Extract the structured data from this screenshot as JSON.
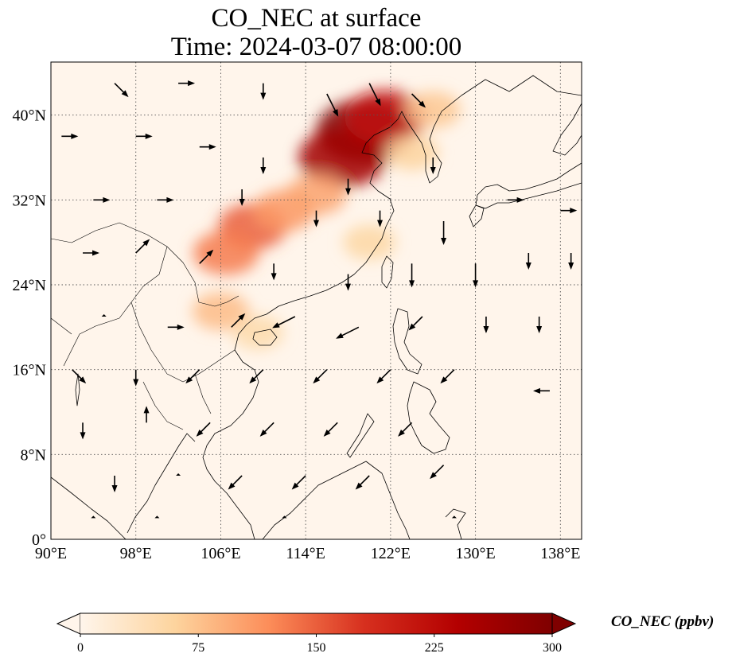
{
  "title": {
    "line1": "CO_NEC at surface",
    "line2": "Time: 2024-03-07 08:00:00"
  },
  "map": {
    "lon_range": [
      90,
      140
    ],
    "lat_range": [
      0,
      45
    ],
    "lon_ticks": [
      {
        "value": 90,
        "label": "90°E"
      },
      {
        "value": 98,
        "label": "98°E"
      },
      {
        "value": 106,
        "label": "106°E"
      },
      {
        "value": 114,
        "label": "114°E"
      },
      {
        "value": 122,
        "label": "122°E"
      },
      {
        "value": 130,
        "label": "130°E"
      },
      {
        "value": 138,
        "label": "138°E"
      }
    ],
    "lat_ticks": [
      {
        "value": 0,
        "label": "0°"
      },
      {
        "value": 8,
        "label": "8°N"
      },
      {
        "value": 16,
        "label": "16°N"
      },
      {
        "value": 24,
        "label": "24°N"
      },
      {
        "value": 32,
        "label": "32°N"
      },
      {
        "value": 40,
        "label": "40°N"
      }
    ],
    "gridlines": "dotted",
    "background_color": "#fff5eb"
  },
  "colorbar": {
    "label": "CO_NEC (ppbv)",
    "colormap": "OrRd",
    "min": 0,
    "max": 300,
    "ticks": [
      {
        "value": 0,
        "label": "0"
      },
      {
        "value": 75,
        "label": "75"
      },
      {
        "value": 150,
        "label": "150"
      },
      {
        "value": 225,
        "label": "225"
      },
      {
        "value": 300,
        "label": "300"
      }
    ],
    "extend": "both",
    "colors": [
      "#fff5eb",
      "#fdd49e",
      "#fc8d59",
      "#d7301f",
      "#b30000",
      "#7f0000"
    ]
  },
  "concentration_plumes": [
    {
      "lon": 119.5,
      "lat": 38.5,
      "value": 300
    },
    {
      "lon": 117.5,
      "lat": 36.0,
      "value": 260
    },
    {
      "lon": 121.5,
      "lat": 39.8,
      "value": 220
    },
    {
      "lon": 109.0,
      "lat": 29.5,
      "value": 150
    },
    {
      "lon": 106.5,
      "lat": 27.0,
      "value": 130
    },
    {
      "lon": 112.0,
      "lat": 31.0,
      "value": 110
    },
    {
      "lon": 115.0,
      "lat": 32.5,
      "value": 100
    },
    {
      "lon": 106.0,
      "lat": 21.5,
      "value": 80
    },
    {
      "lon": 109.5,
      "lat": 19.5,
      "value": 50
    },
    {
      "lon": 124.0,
      "lat": 36.5,
      "value": 60
    },
    {
      "lon": 120.0,
      "lat": 28.0,
      "value": 55
    },
    {
      "lon": 126.0,
      "lat": 40.5,
      "value": 70
    }
  ],
  "wind_vectors": [
    {
      "lon": 96,
      "lat": 43,
      "u": 1,
      "v": -1
    },
    {
      "lon": 102,
      "lat": 43,
      "u": 1,
      "v": 0
    },
    {
      "lon": 110,
      "lat": 43,
      "u": 0,
      "v": -1
    },
    {
      "lon": 116,
      "lat": 42,
      "u": 1,
      "v": -2
    },
    {
      "lon": 120,
      "lat": 43,
      "u": 1,
      "v": -2
    },
    {
      "lon": 124,
      "lat": 42,
      "u": 1,
      "v": -1
    },
    {
      "lon": 91,
      "lat": 38,
      "u": 1,
      "v": 0
    },
    {
      "lon": 98,
      "lat": 38,
      "u": 1,
      "v": 0
    },
    {
      "lon": 104,
      "lat": 37,
      "u": 1,
      "v": 0
    },
    {
      "lon": 110,
      "lat": 36,
      "u": 0,
      "v": -1
    },
    {
      "lon": 118,
      "lat": 34,
      "u": 0,
      "v": -1
    },
    {
      "lon": 126,
      "lat": 36,
      "u": 0,
      "v": -1
    },
    {
      "lon": 94,
      "lat": 32,
      "u": 1,
      "v": 0
    },
    {
      "lon": 100,
      "lat": 32,
      "u": 1,
      "v": 0
    },
    {
      "lon": 108,
      "lat": 33,
      "u": 0,
      "v": -1
    },
    {
      "lon": 115,
      "lat": 31,
      "u": 0,
      "v": -1
    },
    {
      "lon": 121,
      "lat": 31,
      "u": 0,
      "v": -1
    },
    {
      "lon": 127,
      "lat": 30,
      "u": 0,
      "v": -2
    },
    {
      "lon": 133,
      "lat": 32,
      "u": 1,
      "v": 0
    },
    {
      "lon": 138,
      "lat": 31,
      "u": 1,
      "v": 0
    },
    {
      "lon": 93,
      "lat": 27,
      "u": 1,
      "v": 0
    },
    {
      "lon": 98,
      "lat": 27,
      "u": 1,
      "v": 1
    },
    {
      "lon": 104,
      "lat": 26,
      "u": 1,
      "v": 1
    },
    {
      "lon": 111,
      "lat": 26,
      "u": 0,
      "v": -1
    },
    {
      "lon": 118,
      "lat": 25,
      "u": 0,
      "v": -1
    },
    {
      "lon": 124,
      "lat": 26,
      "u": 0,
      "v": -2
    },
    {
      "lon": 130,
      "lat": 26,
      "u": 0,
      "v": -2
    },
    {
      "lon": 135,
      "lat": 27,
      "u": 0,
      "v": -1
    },
    {
      "lon": 139,
      "lat": 27,
      "u": 0,
      "v": -1
    },
    {
      "lon": 95,
      "lat": 21,
      "u": 0,
      "v": 0
    },
    {
      "lon": 101,
      "lat": 20,
      "u": 1,
      "v": 0
    },
    {
      "lon": 107,
      "lat": 20,
      "u": 1,
      "v": 1
    },
    {
      "lon": 113,
      "lat": 21,
      "u": -2,
      "v": -1
    },
    {
      "lon": 119,
      "lat": 20,
      "u": -2,
      "v": -1
    },
    {
      "lon": 125,
      "lat": 21,
      "u": -1,
      "v": -1
    },
    {
      "lon": 131,
      "lat": 21,
      "u": 0,
      "v": -1
    },
    {
      "lon": 136,
      "lat": 21,
      "u": 0,
      "v": -1
    },
    {
      "lon": 92,
      "lat": 16,
      "u": 1,
      "v": -1
    },
    {
      "lon": 98,
      "lat": 16,
      "u": 0,
      "v": -1
    },
    {
      "lon": 104,
      "lat": 16,
      "u": -1,
      "v": -1
    },
    {
      "lon": 110,
      "lat": 16,
      "u": -1,
      "v": -1
    },
    {
      "lon": 116,
      "lat": 16,
      "u": -1,
      "v": -1
    },
    {
      "lon": 122,
      "lat": 16,
      "u": -1,
      "v": -1
    },
    {
      "lon": 128,
      "lat": 16,
      "u": -1,
      "v": -1
    },
    {
      "lon": 137,
      "lat": 14,
      "u": -1,
      "v": 0
    },
    {
      "lon": 93,
      "lat": 11,
      "u": 0,
      "v": -1
    },
    {
      "lon": 99,
      "lat": 11,
      "u": 0,
      "v": 1
    },
    {
      "lon": 105,
      "lat": 11,
      "u": -1,
      "v": -1
    },
    {
      "lon": 111,
      "lat": 11,
      "u": -1,
      "v": -1
    },
    {
      "lon": 117,
      "lat": 11,
      "u": -1,
      "v": -1
    },
    {
      "lon": 124,
      "lat": 11,
      "u": -1,
      "v": -1
    },
    {
      "lon": 96,
      "lat": 6,
      "u": 0,
      "v": -1
    },
    {
      "lon": 102,
      "lat": 6,
      "u": 0,
      "v": 0
    },
    {
      "lon": 108,
      "lat": 6,
      "u": -1,
      "v": -1
    },
    {
      "lon": 114,
      "lat": 6,
      "u": -1,
      "v": -1
    },
    {
      "lon": 120,
      "lat": 6,
      "u": -1,
      "v": -1
    },
    {
      "lon": 127,
      "lat": 7,
      "u": -1,
      "v": -1
    },
    {
      "lon": 94,
      "lat": 2,
      "u": 0,
      "v": 0
    },
    {
      "lon": 100,
      "lat": 2,
      "u": 0,
      "v": 0
    },
    {
      "lon": 112,
      "lat": 2,
      "u": 0,
      "v": 0
    },
    {
      "lon": 128,
      "lat": 2,
      "u": 0,
      "v": 0
    }
  ]
}
